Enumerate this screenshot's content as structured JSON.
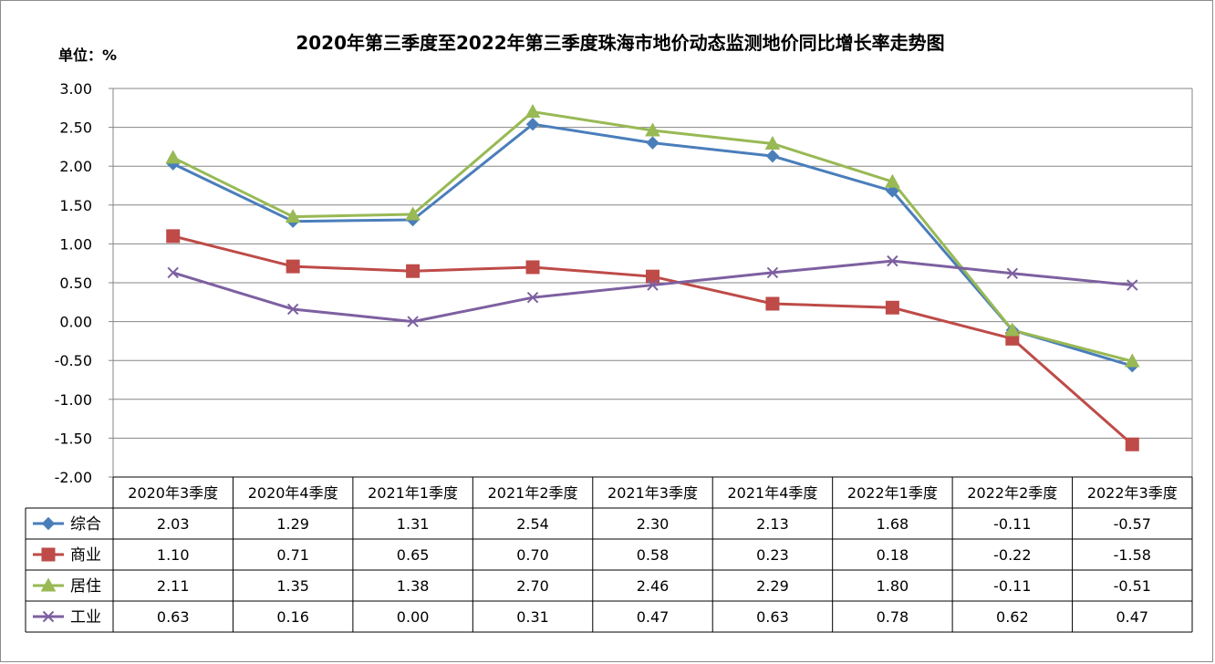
{
  "chart_data": {
    "type": "line",
    "title": "2020年第三季度至2022年第三季度珠海市地价动态监测地价同比增长率走势图",
    "unit_label": "单位：%",
    "categories": [
      "2020年3季度",
      "2020年4季度",
      "2021年1季度",
      "2021年2季度",
      "2021年3季度",
      "2021年4季度",
      "2022年1季度",
      "2022年2季度",
      "2022年3季度"
    ],
    "ylim": [
      -2.0,
      3.0
    ],
    "yticks": [
      "3.00",
      "2.50",
      "2.00",
      "1.50",
      "1.00",
      "0.50",
      "0.00",
      "-0.50",
      "-1.00",
      "-1.50",
      "-2.00"
    ],
    "grid": true,
    "legend": "data-table",
    "series": [
      {
        "name": "综合",
        "color": "#4a7ebb",
        "marker": "diamond",
        "values": [
          2.03,
          1.29,
          1.31,
          2.54,
          2.3,
          2.13,
          1.68,
          -0.11,
          -0.57
        ],
        "labels": [
          "2.03",
          "1.29",
          "1.31",
          "2.54",
          "2.30",
          "2.13",
          "1.68",
          "-0.11",
          "-0.57"
        ]
      },
      {
        "name": "商业",
        "color": "#be4b48",
        "marker": "square",
        "values": [
          1.1,
          0.71,
          0.65,
          0.7,
          0.58,
          0.23,
          0.18,
          -0.22,
          -1.58
        ],
        "labels": [
          "1.10",
          "0.71",
          "0.65",
          "0.70",
          "0.58",
          "0.23",
          "0.18",
          "-0.22",
          "-1.58"
        ]
      },
      {
        "name": "居住",
        "color": "#98b954",
        "marker": "triangle",
        "values": [
          2.11,
          1.35,
          1.38,
          2.7,
          2.46,
          2.29,
          1.8,
          -0.11,
          -0.51
        ],
        "labels": [
          "2.11",
          "1.35",
          "1.38",
          "2.70",
          "2.46",
          "2.29",
          "1.80",
          "-0.11",
          "-0.51"
        ]
      },
      {
        "name": "工业",
        "color": "#7d60a0",
        "marker": "x",
        "values": [
          0.63,
          0.16,
          0.0,
          0.31,
          0.47,
          0.63,
          0.78,
          0.62,
          0.47
        ],
        "labels": [
          "0.63",
          "0.16",
          "0.00",
          "0.31",
          "0.47",
          "0.63",
          "0.78",
          "0.62",
          "0.47"
        ]
      }
    ]
  }
}
